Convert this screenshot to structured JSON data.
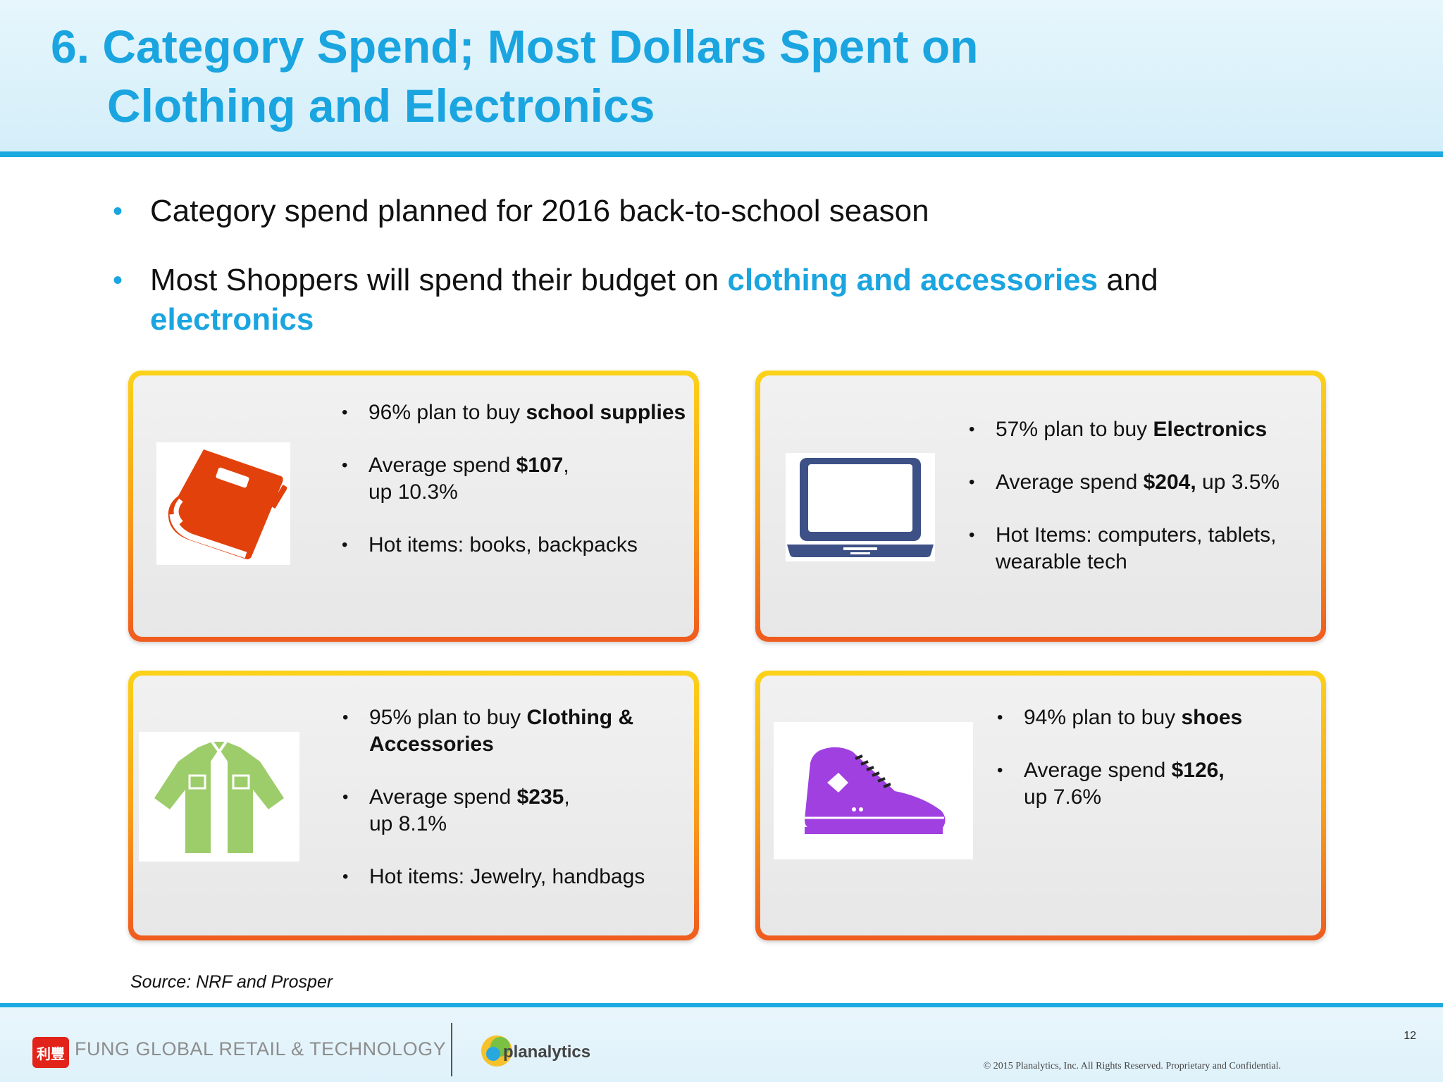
{
  "title": {
    "line1": "6. Category Spend; Most Dollars Spent on",
    "line2": "Clothing and Electronics"
  },
  "bullets": {
    "b1": "Category spend planned for 2016 back-to-school season",
    "b2_pre": "Most Shoppers will spend their budget on ",
    "b2_hl1": "clothing and accessories",
    "b2_mid": " and",
    "b2_hl2": "electronics"
  },
  "cards": {
    "school": {
      "icon": "book-icon",
      "i1_pre": "96% plan to buy ",
      "i1_bold": "school supplies",
      "i2_pre": "Average spend ",
      "i2_bold": "$107",
      "i2_post": ",",
      "i2_line2": "up 10.3%",
      "i3": "Hot items: books, backpacks"
    },
    "electronics": {
      "icon": "laptop-icon",
      "i1_pre": "57% plan to buy ",
      "i1_bold": "Electronics",
      "i2_pre": "Average spend ",
      "i2_bold": "$204,",
      "i2_post": " up 3.5%",
      "i3": "Hot Items: computers, tablets, wearable tech"
    },
    "clothing": {
      "icon": "shirt-icon",
      "i1_pre": "95% plan to buy ",
      "i1_bold": "Clothing & Accessories",
      "i2_pre": "Average spend ",
      "i2_bold": "$235",
      "i2_post": ",",
      "i2_line2": "up 8.1%",
      "i3": "Hot items: Jewelry, handbags"
    },
    "shoes": {
      "icon": "sneaker-icon",
      "i1_pre": "94% plan to buy ",
      "i1_bold": "shoes",
      "i2_pre": "Average spend ",
      "i2_bold": "$126,",
      "i2_line2": "up 7.6%"
    }
  },
  "source": "Source: NRF and Prosper",
  "footer": {
    "fung": "FUNG GLOBAL RETAIL & TECHNOLOGY",
    "fung_logo_text": "利豐",
    "planalytics": "planalytics",
    "page_number": "12",
    "copyright": "© 2015 Planalytics, Inc. All Rights Reserved. Proprietary and Confidential."
  },
  "colors": {
    "accent_blue": "#1aa5e0",
    "book": "#e2410b",
    "laptop": "#3d5186",
    "shirt": "#9dcd6a",
    "sneaker": "#a040e0",
    "card_border_top": "#fbd21a",
    "card_border_bottom": "#ef5b1e"
  }
}
